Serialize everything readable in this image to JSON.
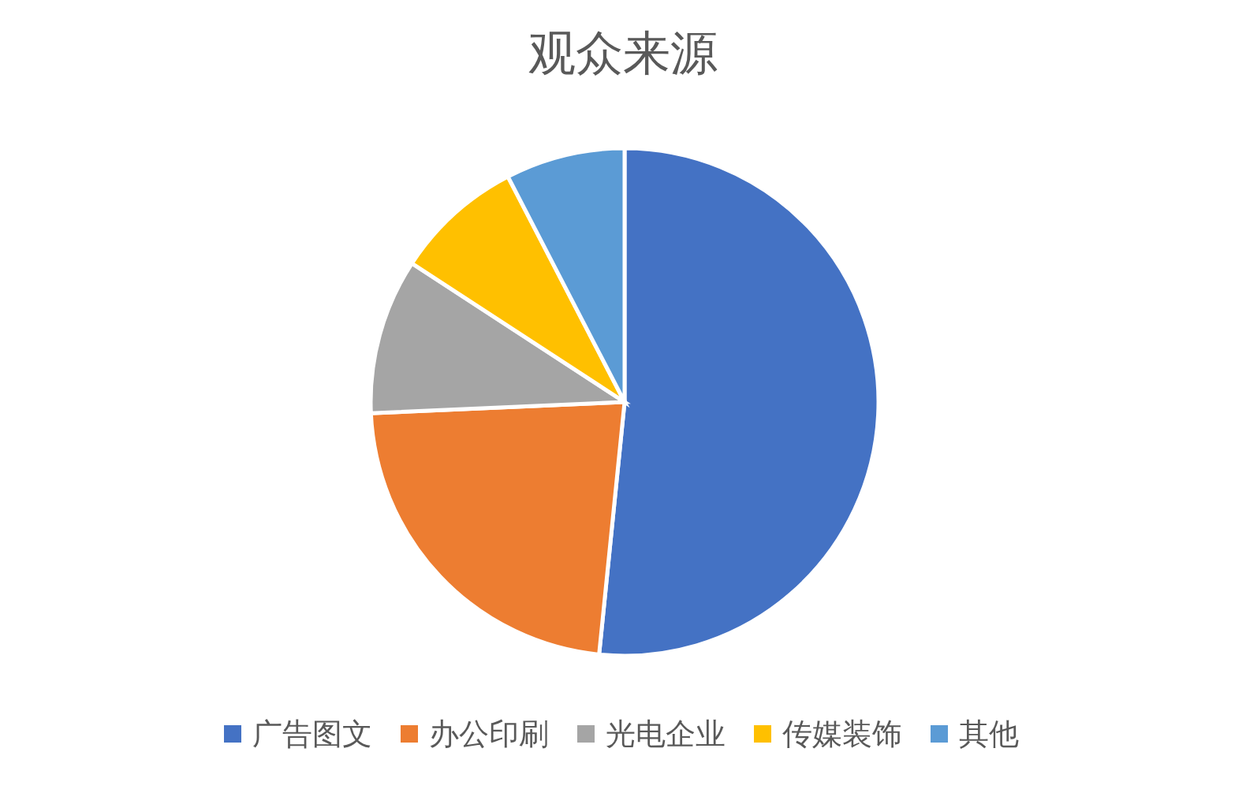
{
  "chart_data": {
    "type": "pie",
    "title": "观众来源",
    "categories": [
      "广告图文",
      "办公印刷",
      "光电企业",
      "传媒装饰",
      "其他"
    ],
    "values": [
      51.6,
      22.7,
      9.9,
      8.2,
      7.6
    ],
    "colors": [
      "#4472c4",
      "#ed7d31",
      "#a5a5a5",
      "#ffc000",
      "#5b9bd5"
    ],
    "legend": "bottom"
  }
}
